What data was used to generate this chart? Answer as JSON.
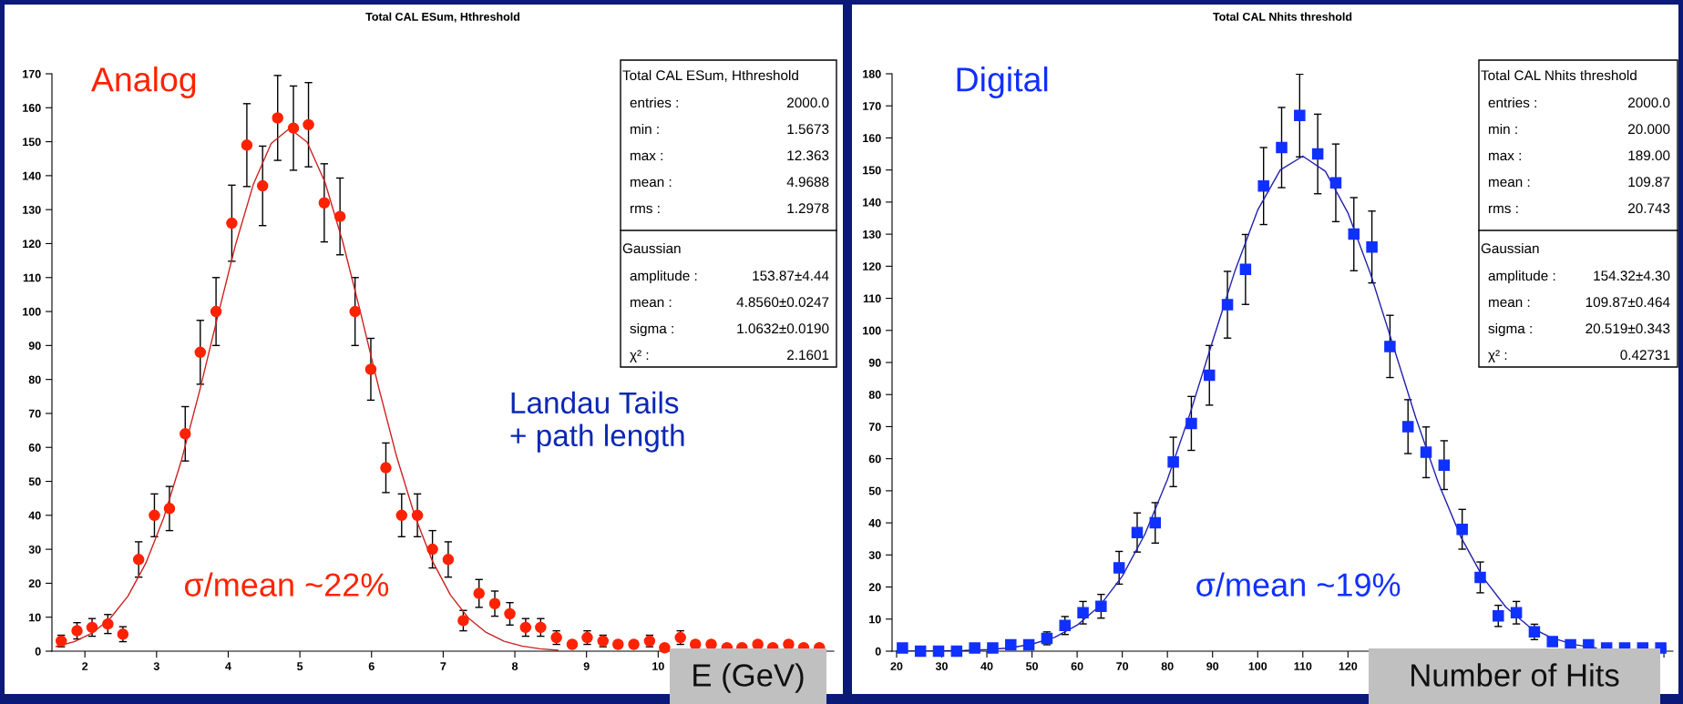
{
  "chart_data": [
    {
      "type": "scatter",
      "title": "Total CAL ESum, Hthreshold",
      "xlabel": "E (GeV)",
      "xlim": [
        1.54,
        12.45
      ],
      "xticks": [
        2,
        3,
        4,
        5,
        6,
        7,
        8,
        9,
        10,
        {
          "value": 11,
          "label": null
        },
        {
          "value": 12,
          "label": null
        }
      ],
      "ylim": [
        0,
        170
      ],
      "yticks": [
        0,
        10,
        20,
        30,
        40,
        50,
        60,
        70,
        80,
        90,
        100,
        110,
        120,
        130,
        140,
        150,
        160,
        170
      ],
      "grid": false,
      "series": [
        {
          "name": "Analog",
          "type": "scatter",
          "color": "#ff2200",
          "marker": "circle",
          "x": [
            1.67,
            1.89,
            2.1,
            2.32,
            2.53,
            2.75,
            2.97,
            3.18,
            3.4,
            3.61,
            3.83,
            4.05,
            4.26,
            4.48,
            4.69,
            4.91,
            5.12,
            5.34,
            5.56,
            5.77,
            5.99,
            6.2,
            6.42,
            6.64,
            6.85,
            7.07,
            7.28,
            7.5,
            7.72,
            7.93,
            8.15,
            8.36,
            8.58,
            8.8,
            9.01,
            9.23,
            9.44,
            9.66,
            9.88,
            10.09,
            10.31,
            10.52,
            10.74,
            10.96,
            11.17,
            11.39,
            11.6,
            11.82,
            12.03,
            12.25
          ],
          "values": [
            3,
            6,
            7,
            8,
            5,
            27,
            40,
            42,
            64,
            88,
            100,
            126,
            149,
            137,
            157,
            154,
            155,
            132,
            128,
            100,
            83,
            54,
            40,
            40,
            30,
            27,
            9,
            17,
            14,
            11,
            7,
            7,
            4,
            2,
            4,
            3,
            2,
            2,
            3,
            1,
            4,
            2,
            2,
            1,
            1,
            2,
            1,
            2,
            1,
            1
          ],
          "errors": [
            1.7,
            2.4,
            2.6,
            2.8,
            2.2,
            5.2,
            6.3,
            6.5,
            8,
            9.4,
            10,
            11.2,
            12.2,
            11.7,
            12.5,
            12.4,
            12.4,
            11.5,
            11.3,
            10,
            9.1,
            7.3,
            6.3,
            6.3,
            5.5,
            5.2,
            3,
            4.1,
            3.7,
            3.3,
            2.6,
            2.6,
            2,
            null,
            2,
            1.7,
            null,
            null,
            1.7,
            null,
            2,
            null,
            null,
            null,
            null,
            null,
            null,
            null,
            null,
            null
          ]
        },
        {
          "type": "line",
          "color": "#cc2020",
          "marker": "none",
          "x": [
            1.6,
            1.85,
            2.1,
            2.35,
            2.6,
            2.85,
            3.1,
            3.35,
            3.6,
            3.85,
            4.1,
            4.35,
            4.6,
            4.856,
            5.1,
            5.35,
            5.6,
            5.85,
            6.1,
            6.35,
            6.6,
            6.85,
            7.1,
            7.35,
            7.6,
            7.85,
            8.1,
            8.35,
            8.6
          ],
          "values": [
            1.4,
            2.8,
            5.3,
            9.6,
            16.2,
            25.9,
            39.3,
            56.4,
            76.6,
            98.3,
            119.5,
            137.4,
            149.5,
            153.9,
            149.9,
            138.1,
            120.4,
            99.4,
            77.6,
            57.3,
            40.1,
            26.5,
            16.6,
            9.8,
            5.5,
            2.9,
            1.5,
            0.7,
            0.3
          ]
        }
      ],
      "annotations": [
        "Total CAL ESum, Hthreshold",
        "entries :",
        "2000.0",
        "min :",
        "1.5673",
        "max :",
        "12.363",
        "mean :",
        "4.9688",
        "rms :",
        "1.2978",
        "Gaussian",
        "amplitude :",
        "153.87±4.44",
        "mean :",
        "4.8560±0.0247",
        "sigma :",
        "1.0632±0.0190",
        "χ² :",
        "2.1601",
        "σ/mean ~22%",
        "Landau Tails\n+ path length"
      ]
    },
    {
      "type": "scatter",
      "title": "Total CAL Nhits threshold",
      "xlabel": "Number of Hits",
      "xlim": [
        19,
        192
      ],
      "xticks": [
        20,
        30,
        40,
        50,
        60,
        70,
        80,
        90,
        100,
        110,
        120,
        {
          "value": 130,
          "label": null
        },
        {
          "value": 140,
          "label": null
        },
        {
          "value": 150,
          "label": null
        },
        {
          "value": 160,
          "label": null
        },
        {
          "value": 170,
          "label": null
        },
        {
          "value": 180,
          "label": null
        },
        {
          "value": 190,
          "label": null
        }
      ],
      "ylim": [
        0,
        180
      ],
      "yticks": [
        0,
        10,
        20,
        30,
        40,
        50,
        60,
        70,
        80,
        90,
        100,
        110,
        120,
        130,
        140,
        150,
        160,
        170,
        180
      ],
      "grid": false,
      "series": [
        {
          "name": "Digital",
          "type": "scatter",
          "color": "#1030ff",
          "marker": "square",
          "x": [
            21.3,
            25.3,
            29.3,
            33.3,
            37.3,
            41.3,
            45.3,
            49.3,
            53.3,
            57.3,
            61.3,
            65.3,
            69.3,
            73.3,
            77.3,
            81.3,
            85.3,
            89.3,
            93.3,
            97.3,
            101.3,
            105.3,
            109.3,
            113.3,
            117.3,
            121.3,
            125.3,
            129.3,
            133.3,
            137.3,
            141.3,
            145.3,
            149.3,
            153.3,
            157.3,
            161.3,
            165.3,
            169.3,
            173.3,
            177.3,
            181.3,
            185.3,
            189.3
          ],
          "values": [
            1,
            0,
            0,
            0,
            1,
            1,
            2,
            2,
            4,
            8,
            12,
            14,
            26,
            37,
            40,
            59,
            71,
            86,
            108,
            119,
            145,
            157,
            167,
            155,
            146,
            130,
            126,
            95,
            70,
            62,
            58,
            38,
            23,
            11,
            12,
            6,
            3,
            2,
            2,
            1,
            1,
            1,
            1
          ],
          "errors": [
            null,
            null,
            null,
            null,
            null,
            null,
            null,
            null,
            2,
            2.8,
            3.5,
            3.7,
            5.1,
            6.1,
            6.3,
            7.7,
            8.4,
            9.3,
            10.4,
            10.9,
            12,
            12.5,
            12.9,
            12.4,
            12.1,
            11.4,
            11.2,
            9.7,
            8.4,
            7.9,
            7.6,
            6.2,
            4.8,
            3.3,
            3.5,
            2.4,
            null,
            null,
            null,
            null,
            null,
            null,
            null
          ]
        },
        {
          "type": "line",
          "color": "#2020b0",
          "marker": "none",
          "x": [
            20,
            25,
            30,
            35,
            40,
            45,
            50,
            55,
            60,
            65,
            70,
            75,
            80,
            85,
            90,
            95,
            100,
            105,
            110,
            115,
            120,
            125,
            130,
            135,
            140,
            145,
            150,
            155,
            160,
            165,
            170,
            175
          ],
          "values": [
            0,
            0,
            0.1,
            0.2,
            0.5,
            1,
            2.2,
            4.3,
            8.1,
            14.1,
            23.4,
            36.4,
            53.5,
            74,
            96.6,
            118.7,
            137.5,
            150,
            154.3,
            149.6,
            136.6,
            117.6,
            95.3,
            72.9,
            52.5,
            35.6,
            22.8,
            13.7,
            7.8,
            4.2,
            2.1,
            1
          ]
        }
      ],
      "annotations": [
        "Total CAL Nhits threshold",
        "entries :",
        "2000.0",
        "min :",
        "20.000",
        "max :",
        "189.00",
        "mean :",
        "109.87",
        "rms :",
        "20.743",
        "Gaussian",
        "amplitude :",
        "154.32±4.30",
        "mean :",
        "109.87±0.464",
        "sigma :",
        "20.519±0.343",
        "χ² :",
        "0.42731",
        "σ/mean ~19%"
      ]
    }
  ]
}
